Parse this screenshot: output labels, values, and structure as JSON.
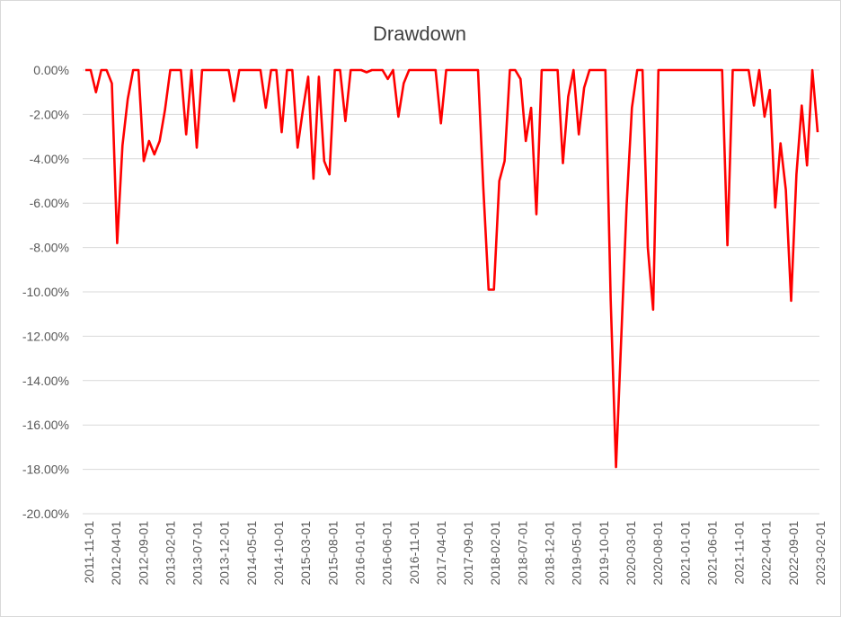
{
  "chart_data": {
    "type": "line",
    "title": "Drawdown",
    "xlabel": "",
    "ylabel": "",
    "ylim": [
      -0.2,
      0.0
    ],
    "y_ticks": [
      0.0,
      -0.02,
      -0.04,
      -0.06,
      -0.08,
      -0.1,
      -0.12,
      -0.14,
      -0.16,
      -0.18,
      -0.2
    ],
    "y_tick_labels": [
      "0.00%",
      "-2.00%",
      "-4.00%",
      "-6.00%",
      "-8.00%",
      "-10.00%",
      "-12.00%",
      "-14.00%",
      "-16.00%",
      "-18.00%",
      "-20.00%"
    ],
    "x_tick_labels": [
      "2011-11-01",
      "2012-04-01",
      "2012-09-01",
      "2013-02-01",
      "2013-07-01",
      "2013-12-01",
      "2014-05-01",
      "2014-10-01",
      "2015-03-01",
      "2015-08-01",
      "2016-01-01",
      "2016-06-01",
      "2016-11-01",
      "2017-04-01",
      "2017-09-01",
      "2018-02-01",
      "2018-07-01",
      "2018-12-01",
      "2019-05-01",
      "2019-10-01",
      "2020-03-01",
      "2020-08-01",
      "2021-01-01",
      "2021-06-01",
      "2021-11-01",
      "2022-04-01",
      "2022-09-01",
      "2023-02-01"
    ],
    "grid": true,
    "legend": "none",
    "line_color": "#ff0000",
    "series": [
      {
        "values": [
          0.0,
          0.0,
          -0.01,
          0.0,
          0.0,
          -0.006,
          -0.078,
          -0.034,
          -0.013,
          0.0,
          0.0,
          -0.041,
          -0.032,
          -0.038,
          -0.032,
          -0.018,
          0.0,
          0.0,
          0.0,
          -0.029,
          0.0,
          -0.035,
          0.0,
          0.0,
          0.0,
          0.0,
          0.0,
          0.0,
          -0.014,
          0.0,
          0.0,
          0.0,
          0.0,
          0.0,
          -0.017,
          0.0,
          0.0,
          -0.028,
          0.0,
          0.0,
          -0.035,
          -0.018,
          -0.003,
          -0.049,
          -0.003,
          -0.041,
          -0.047,
          0.0,
          0.0,
          -0.023,
          0.0,
          0.0,
          0.0,
          -0.001,
          0.0,
          0.0,
          0.0,
          -0.004,
          0.0,
          -0.021,
          -0.006,
          0.0,
          0.0,
          0.0,
          0.0,
          0.0,
          0.0,
          -0.024,
          0.0,
          0.0,
          0.0,
          0.0,
          0.0,
          0.0,
          0.0,
          -0.053,
          -0.099,
          -0.099,
          -0.05,
          -0.041,
          0.0,
          0.0,
          -0.004,
          -0.032,
          -0.017,
          -0.065,
          0.0,
          0.0,
          0.0,
          0.0,
          -0.042,
          -0.012,
          0.0,
          -0.029,
          -0.008,
          0.0,
          0.0,
          0.0,
          0.0,
          -0.104,
          -0.179,
          -0.12,
          -0.061,
          -0.017,
          0.0,
          0.0,
          -0.08,
          -0.108,
          0.0,
          0.0,
          0.0,
          0.0,
          0.0,
          0.0,
          0.0,
          0.0,
          0.0,
          0.0,
          0.0,
          0.0,
          0.0,
          -0.079,
          0.0,
          0.0,
          0.0,
          0.0,
          -0.016,
          0.0,
          -0.021,
          -0.009,
          -0.062,
          -0.033,
          -0.054,
          -0.104,
          -0.047,
          -0.016,
          -0.043,
          0.0,
          -0.028
        ]
      }
    ]
  }
}
